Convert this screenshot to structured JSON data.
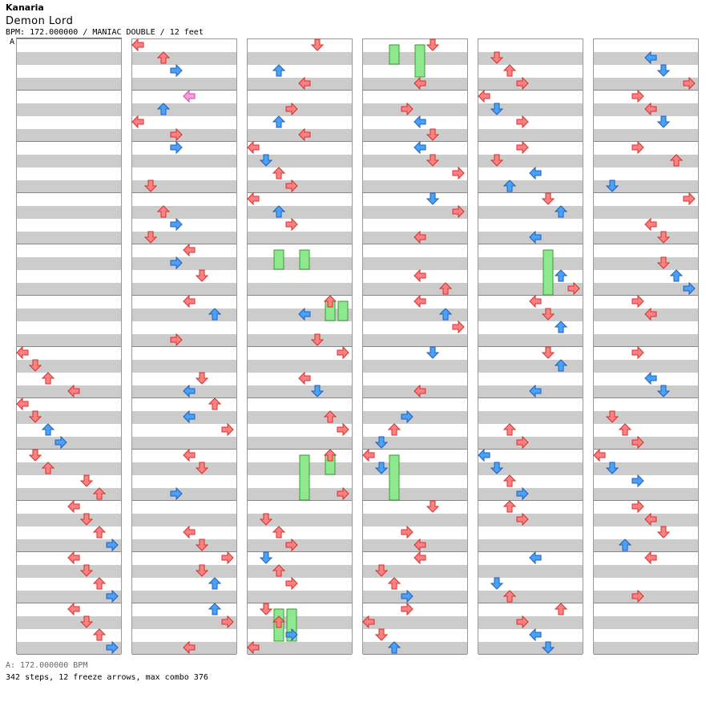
{
  "header": {
    "title": "Kanaria",
    "song": "Demon Lord",
    "meta": "BPM: 172.000000 / MANIAC DOUBLE / 12 feet"
  },
  "bpm_marker": "A",
  "footer": {
    "bpm_line": "A: 172.000000 BPM",
    "stats_line": "342 steps, 12 freeze arrows, max combo 376"
  },
  "colors": {
    "quarter_note": "#ff8080",
    "eighth_note": "#4aa0ff",
    "sixteenth_note": "#ff9ce0",
    "freeze": "#8ee88e",
    "stripe": "#cccccc"
  },
  "chart_data": {
    "type": "step-chart",
    "columns": 6,
    "measures_per_column": 12,
    "lanes": 8,
    "bpm": 172.0,
    "steps": 342,
    "freeze_arrows": 12,
    "max_combo": 376,
    "notes": [
      [
        0,
        6,
        0,
        "q"
      ],
      [
        0,
        6,
        1,
        "q"
      ],
      [
        0,
        6,
        2,
        "q"
      ],
      [
        0,
        6,
        4,
        "q"
      ],
      [
        0,
        7,
        0,
        "q"
      ],
      [
        0,
        7,
        1,
        "q"
      ],
      [
        0,
        7,
        2,
        "e"
      ],
      [
        0,
        7,
        3,
        "e"
      ],
      [
        0,
        8,
        1,
        "q"
      ],
      [
        0,
        8,
        2,
        "q"
      ],
      [
        0,
        8,
        5,
        "q"
      ],
      [
        0,
        8,
        6,
        "q"
      ],
      [
        0,
        9,
        4,
        "q"
      ],
      [
        0,
        9,
        5,
        "q"
      ],
      [
        0,
        9,
        6,
        "q"
      ],
      [
        0,
        9,
        7,
        "e"
      ],
      [
        0,
        10,
        4,
        "q"
      ],
      [
        0,
        10,
        5,
        "q"
      ],
      [
        0,
        10,
        6,
        "q"
      ],
      [
        0,
        10,
        7,
        "e"
      ],
      [
        0,
        11,
        4,
        "q"
      ],
      [
        0,
        11,
        5,
        "q"
      ],
      [
        0,
        11,
        6,
        "q"
      ],
      [
        0,
        11,
        7,
        "e"
      ],
      [
        1,
        0,
        0,
        "q"
      ],
      [
        1,
        0,
        2,
        "q"
      ],
      [
        1,
        0,
        3,
        "e"
      ],
      [
        1,
        1,
        3,
        "q"
      ],
      [
        1,
        1,
        4,
        "s"
      ],
      [
        1,
        1,
        2,
        "e"
      ],
      [
        1,
        1,
        0,
        "q"
      ],
      [
        1,
        2,
        1,
        "q"
      ],
      [
        1,
        2,
        3,
        "e"
      ],
      [
        1,
        3,
        2,
        "q"
      ],
      [
        1,
        3,
        3,
        "e"
      ],
      [
        1,
        3,
        1,
        "q"
      ],
      [
        1,
        4,
        4,
        "q"
      ],
      [
        1,
        4,
        3,
        "e"
      ],
      [
        1,
        4,
        5,
        "q"
      ],
      [
        1,
        5,
        3,
        "q"
      ],
      [
        1,
        5,
        4,
        "q"
      ],
      [
        1,
        5,
        6,
        "e"
      ],
      [
        1,
        6,
        5,
        "q"
      ],
      [
        1,
        6,
        4,
        "e"
      ],
      [
        1,
        7,
        6,
        "q"
      ],
      [
        1,
        7,
        4,
        "e"
      ],
      [
        1,
        7,
        7,
        "q"
      ],
      [
        1,
        8,
        3,
        "e"
      ],
      [
        1,
        8,
        4,
        "q"
      ],
      [
        1,
        8,
        5,
        "q"
      ],
      [
        1,
        9,
        4,
        "q"
      ],
      [
        1,
        9,
        5,
        "q"
      ],
      [
        1,
        10,
        7,
        "q"
      ],
      [
        1,
        10,
        5,
        "q"
      ],
      [
        1,
        10,
        6,
        "e"
      ],
      [
        1,
        11,
        4,
        "q"
      ],
      [
        1,
        11,
        6,
        "e"
      ],
      [
        1,
        11,
        7,
        "q"
      ],
      [
        2,
        0,
        2,
        "e"
      ],
      [
        2,
        0,
        4,
        "q"
      ],
      [
        2,
        0,
        5,
        "q"
      ],
      [
        2,
        1,
        3,
        "q"
      ],
      [
        2,
        1,
        2,
        "e"
      ],
      [
        2,
        1,
        4,
        "q"
      ],
      [
        2,
        2,
        0,
        "q"
      ],
      [
        2,
        2,
        1,
        "e"
      ],
      [
        2,
        2,
        2,
        "q"
      ],
      [
        2,
        2,
        3,
        "q"
      ],
      [
        2,
        3,
        0,
        "q"
      ],
      [
        2,
        3,
        2,
        "e"
      ],
      [
        2,
        3,
        3,
        "q"
      ],
      [
        2,
        5,
        5,
        "q"
      ],
      [
        2,
        5,
        6,
        "q"
      ],
      [
        2,
        5,
        4,
        "e"
      ],
      [
        2,
        6,
        4,
        "q"
      ],
      [
        2,
        6,
        5,
        "e"
      ],
      [
        2,
        6,
        7,
        "q"
      ],
      [
        2,
        7,
        6,
        "q"
      ],
      [
        2,
        7,
        7,
        "q"
      ],
      [
        2,
        8,
        7,
        "q"
      ],
      [
        2,
        8,
        6,
        "q"
      ],
      [
        2,
        9,
        1,
        "q"
      ],
      [
        2,
        9,
        2,
        "q"
      ],
      [
        2,
        9,
        3,
        "q"
      ],
      [
        2,
        10,
        1,
        "e"
      ],
      [
        2,
        10,
        2,
        "q"
      ],
      [
        2,
        10,
        3,
        "q"
      ],
      [
        2,
        11,
        0,
        "q"
      ],
      [
        2,
        11,
        1,
        "q"
      ],
      [
        2,
        11,
        2,
        "q"
      ],
      [
        2,
        11,
        3,
        "e"
      ],
      [
        3,
        0,
        4,
        "q"
      ],
      [
        3,
        0,
        5,
        "q"
      ],
      [
        3,
        1,
        3,
        "q"
      ],
      [
        3,
        1,
        4,
        "e"
      ],
      [
        3,
        1,
        5,
        "q"
      ],
      [
        3,
        2,
        4,
        "e"
      ],
      [
        3,
        2,
        5,
        "q"
      ],
      [
        3,
        2,
        7,
        "q"
      ],
      [
        3,
        3,
        4,
        "q"
      ],
      [
        3,
        3,
        5,
        "e"
      ],
      [
        3,
        3,
        7,
        "q"
      ],
      [
        3,
        4,
        4,
        "q"
      ],
      [
        3,
        4,
        6,
        "q"
      ],
      [
        3,
        5,
        4,
        "q"
      ],
      [
        3,
        5,
        6,
        "e"
      ],
      [
        3,
        5,
        7,
        "q"
      ],
      [
        3,
        6,
        4,
        "q"
      ],
      [
        3,
        6,
        5,
        "e"
      ],
      [
        3,
        7,
        3,
        "e"
      ],
      [
        3,
        7,
        2,
        "q"
      ],
      [
        3,
        7,
        1,
        "e"
      ],
      [
        3,
        8,
        0,
        "q"
      ],
      [
        3,
        8,
        1,
        "e"
      ],
      [
        3,
        9,
        3,
        "q"
      ],
      [
        3,
        9,
        4,
        "q"
      ],
      [
        3,
        9,
        5,
        "q"
      ],
      [
        3,
        10,
        1,
        "q"
      ],
      [
        3,
        10,
        2,
        "q"
      ],
      [
        3,
        10,
        3,
        "e"
      ],
      [
        3,
        10,
        4,
        "q"
      ],
      [
        3,
        11,
        0,
        "q"
      ],
      [
        3,
        11,
        1,
        "q"
      ],
      [
        3,
        11,
        2,
        "e"
      ],
      [
        3,
        11,
        3,
        "q"
      ],
      [
        4,
        0,
        1,
        "q"
      ],
      [
        4,
        0,
        2,
        "q"
      ],
      [
        4,
        0,
        3,
        "q"
      ],
      [
        4,
        1,
        0,
        "q"
      ],
      [
        4,
        1,
        1,
        "e"
      ],
      [
        4,
        1,
        3,
        "q"
      ],
      [
        4,
        2,
        2,
        "e"
      ],
      [
        4,
        2,
        3,
        "q"
      ],
      [
        4,
        2,
        1,
        "q"
      ],
      [
        4,
        2,
        4,
        "e"
      ],
      [
        4,
        3,
        4,
        "e"
      ],
      [
        4,
        3,
        5,
        "q"
      ],
      [
        4,
        3,
        6,
        "e"
      ],
      [
        4,
        4,
        6,
        "e"
      ],
      [
        4,
        4,
        7,
        "q"
      ],
      [
        4,
        5,
        4,
        "q"
      ],
      [
        4,
        5,
        5,
        "q"
      ],
      [
        4,
        5,
        6,
        "e"
      ],
      [
        4,
        6,
        4,
        "e"
      ],
      [
        4,
        6,
        5,
        "q"
      ],
      [
        4,
        6,
        6,
        "e"
      ],
      [
        4,
        7,
        2,
        "q"
      ],
      [
        4,
        7,
        3,
        "q"
      ],
      [
        4,
        8,
        0,
        "e"
      ],
      [
        4,
        8,
        1,
        "e"
      ],
      [
        4,
        8,
        2,
        "q"
      ],
      [
        4,
        8,
        3,
        "e"
      ],
      [
        4,
        9,
        2,
        "q"
      ],
      [
        4,
        9,
        3,
        "q"
      ],
      [
        4,
        10,
        1,
        "e"
      ],
      [
        4,
        10,
        2,
        "q"
      ],
      [
        4,
        10,
        4,
        "e"
      ],
      [
        4,
        11,
        3,
        "q"
      ],
      [
        4,
        11,
        4,
        "e"
      ],
      [
        4,
        11,
        5,
        "e"
      ],
      [
        4,
        11,
        6,
        "q"
      ],
      [
        5,
        0,
        4,
        "e"
      ],
      [
        5,
        0,
        5,
        "e"
      ],
      [
        5,
        0,
        7,
        "q"
      ],
      [
        5,
        1,
        3,
        "q"
      ],
      [
        5,
        1,
        4,
        "q"
      ],
      [
        5,
        1,
        5,
        "e"
      ],
      [
        5,
        2,
        1,
        "e"
      ],
      [
        5,
        2,
        3,
        "q"
      ],
      [
        5,
        2,
        6,
        "q"
      ],
      [
        5,
        3,
        4,
        "q"
      ],
      [
        5,
        3,
        5,
        "q"
      ],
      [
        5,
        3,
        7,
        "q"
      ],
      [
        5,
        4,
        5,
        "q"
      ],
      [
        5,
        4,
        6,
        "e"
      ],
      [
        5,
        4,
        7,
        "e"
      ],
      [
        5,
        5,
        3,
        "q"
      ],
      [
        5,
        5,
        4,
        "q"
      ],
      [
        5,
        6,
        4,
        "e"
      ],
      [
        5,
        6,
        5,
        "e"
      ],
      [
        5,
        6,
        3,
        "q"
      ],
      [
        5,
        7,
        1,
        "q"
      ],
      [
        5,
        7,
        2,
        "q"
      ],
      [
        5,
        7,
        3,
        "q"
      ],
      [
        5,
        8,
        0,
        "q"
      ],
      [
        5,
        8,
        1,
        "e"
      ],
      [
        5,
        8,
        3,
        "e"
      ],
      [
        5,
        9,
        2,
        "e"
      ],
      [
        5,
        9,
        3,
        "q"
      ],
      [
        5,
        9,
        4,
        "q"
      ],
      [
        5,
        9,
        5,
        "q"
      ],
      [
        5,
        10,
        3,
        "q"
      ],
      [
        5,
        10,
        4,
        "q"
      ]
    ],
    "freezes": [
      [
        2,
        4,
        2,
        1,
        "start"
      ],
      [
        2,
        4,
        4,
        1,
        "start"
      ],
      [
        2,
        5,
        6,
        1,
        "start"
      ],
      [
        2,
        5,
        7,
        1,
        "start"
      ],
      [
        2,
        8,
        4,
        3,
        "start"
      ],
      [
        2,
        8,
        6,
        1,
        "start"
      ],
      [
        2,
        11,
        2,
        2,
        "start"
      ],
      [
        2,
        11,
        3,
        2,
        "start"
      ],
      [
        3,
        0,
        2,
        1,
        "start"
      ],
      [
        3,
        0,
        4,
        2,
        "start"
      ],
      [
        3,
        8,
        2,
        3,
        "start"
      ],
      [
        4,
        4,
        5,
        3,
        "start"
      ]
    ]
  }
}
